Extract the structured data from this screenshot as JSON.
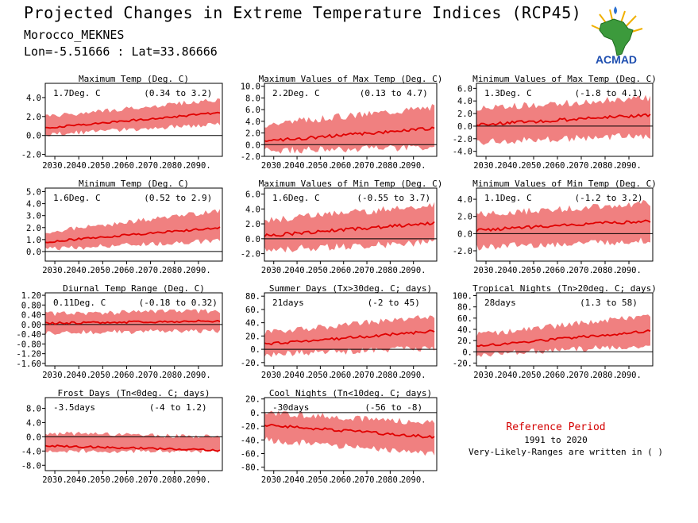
{
  "title": "Projected Changes in Extreme Temperature Indices (RCP45)",
  "station": "Morocco_MEKNES",
  "coords": "Lon=-5.51666 : Lat=33.86666",
  "logo_text": "ACMAD",
  "colors": {
    "band": "#f08080",
    "line": "#e00000",
    "axis": "#000000",
    "ref_title": "#d40000"
  },
  "reference": {
    "title": "Reference Period",
    "years": "1991 to 2020",
    "note": "Very-Likely-Ranges are written in ( )"
  },
  "chart_data": [
    {
      "type": "area",
      "title": "Maximum Temp (Deg. C)",
      "summary": "1.7Deg. C",
      "range": "(0.34 to 3.2)",
      "x_ticks": [
        "2030.",
        "2040.",
        "2050.",
        "2060.",
        "2070.",
        "2080.",
        "2090."
      ],
      "y_ticks": [
        "-2.0",
        "0.0",
        "2.0",
        "4.0"
      ],
      "xlim": [
        2026,
        2100
      ],
      "ylim": [
        -2.2,
        5.5
      ],
      "series": {
        "x_start": 2026,
        "x_end": 2099,
        "mean_start": 0.8,
        "mean_end": 2.4,
        "band_lower": [
          0.1,
          1.2
        ],
        "band_upper": [
          2.0,
          3.8
        ],
        "noise": 0.35
      }
    },
    {
      "type": "area",
      "title": "Maximum Values of Max Temp (Deg. C)",
      "summary": "2.2Deg. C",
      "range": "(0.13 to 4.7)",
      "x_ticks": [
        "2030.",
        "2040.",
        "2050.",
        "2060.",
        "2070.",
        "2080.",
        "2090."
      ],
      "y_ticks": [
        "-2.0",
        "0.0",
        "2.0",
        "4.0",
        "6.0",
        "8.0",
        "10.0"
      ],
      "xlim": [
        2026,
        2100
      ],
      "ylim": [
        -2.0,
        10.5
      ],
      "series": {
        "x_start": 2026,
        "x_end": 2099,
        "mean_start": 0.6,
        "mean_end": 2.8,
        "band_lower": [
          -1.0,
          -0.5
        ],
        "band_upper": [
          3.5,
          6.5
        ],
        "noise": 0.9
      }
    },
    {
      "type": "area",
      "title": "Minimum Values of Max Temp (Deg. C)",
      "summary": "1.3Deg. C",
      "range": "(-1.8 to 4.1)",
      "x_ticks": [
        "2030.",
        "2040.",
        "2050.",
        "2060.",
        "2070.",
        "2080.",
        "2090."
      ],
      "y_ticks": [
        "-4.0",
        "-2.0",
        "0.0",
        "2.0",
        "4.0",
        "6.0"
      ],
      "xlim": [
        2026,
        2100
      ],
      "ylim": [
        -4.8,
        6.8
      ],
      "series": {
        "x_start": 2026,
        "x_end": 2099,
        "mean_start": 0.2,
        "mean_end": 1.8,
        "band_lower": [
          -2.5,
          -1.5
        ],
        "band_upper": [
          2.8,
          4.5
        ],
        "noise": 0.8
      }
    },
    {
      "type": "area",
      "title": "Minimum Temp (Deg. C)",
      "summary": "1.6Deg. C",
      "range": "(0.52 to 2.9)",
      "x_ticks": [
        "2030.",
        "2040.",
        "2050.",
        "2060.",
        "2070.",
        "2080.",
        "2090."
      ],
      "y_ticks": [
        "0.0",
        "1.0",
        "2.0",
        "3.0",
        "4.0",
        "5.0"
      ],
      "xlim": [
        2026,
        2100
      ],
      "ylim": [
        -0.8,
        5.3
      ],
      "series": {
        "x_start": 2026,
        "x_end": 2099,
        "mean_start": 0.8,
        "mean_end": 2.0,
        "band_lower": [
          0.2,
          0.9
        ],
        "band_upper": [
          1.6,
          3.4
        ],
        "noise": 0.3
      }
    },
    {
      "type": "area",
      "title": "Maximum Values of Min Temp (Deg. C)",
      "summary": "1.6Deg. C",
      "range": "(-0.55 to 3.7)",
      "x_ticks": [
        "2030.",
        "2040.",
        "2050.",
        "2060.",
        "2070.",
        "2080.",
        "2090."
      ],
      "y_ticks": [
        "-2.0",
        "0.0",
        "2.0",
        "4.0",
        "6.0"
      ],
      "xlim": [
        2026,
        2100
      ],
      "ylim": [
        -3.0,
        6.8
      ],
      "series": {
        "x_start": 2026,
        "x_end": 2099,
        "mean_start": 0.4,
        "mean_end": 2.1,
        "band_lower": [
          -1.5,
          -0.5
        ],
        "band_upper": [
          2.5,
          4.5
        ],
        "noise": 0.7
      }
    },
    {
      "type": "area",
      "title": "Minimum Values of Min Temp (Deg. C)",
      "summary": "1.1Deg. C",
      "range": "(-1.2 to 3.2)",
      "x_ticks": [
        "2030.",
        "2040.",
        "2050.",
        "2060.",
        "2070.",
        "2080.",
        "2090."
      ],
      "y_ticks": [
        "-2.0",
        "0.0",
        "2.0",
        "4.0"
      ],
      "xlim": [
        2026,
        2100
      ],
      "ylim": [
        -3.2,
        5.3
      ],
      "series": {
        "x_start": 2026,
        "x_end": 2099,
        "mean_start": 0.4,
        "mean_end": 1.5,
        "band_lower": [
          -1.6,
          -0.8
        ],
        "band_upper": [
          2.2,
          3.6
        ],
        "noise": 0.6
      }
    },
    {
      "type": "area",
      "title": "Diurnal Temp Range (Deg. C)",
      "summary": "0.11Deg. C",
      "range": "(-0.18 to 0.32)",
      "x_ticks": [
        "2030.",
        "2040.",
        "2050.",
        "2060.",
        "2070.",
        "2080.",
        "2090."
      ],
      "y_ticks": [
        "-1.60",
        "-1.20",
        "-0.80",
        "-0.40",
        "0.00",
        "0.40",
        "0.80",
        "1.20"
      ],
      "xlim": [
        2026,
        2100
      ],
      "ylim": [
        -1.7,
        1.3
      ],
      "series": {
        "x_start": 2026,
        "x_end": 2099,
        "mean_start": 0.05,
        "mean_end": 0.15,
        "band_lower": [
          -0.35,
          -0.25
        ],
        "band_upper": [
          0.45,
          0.55
        ],
        "noise": 0.15
      }
    },
    {
      "type": "area",
      "title": "Summer Days (Tx>30deg. C; days)",
      "summary": "21days",
      "range": "(-2 to 45)",
      "x_ticks": [
        "2030.",
        "2040.",
        "2050.",
        "2060.",
        "2070.",
        "2080.",
        "2090."
      ],
      "y_ticks": [
        "-20.",
        "0.",
        "20.",
        "40.",
        "60.",
        "80."
      ],
      "xlim": [
        2026,
        2100
      ],
      "ylim": [
        -25,
        85
      ],
      "series": {
        "x_start": 2026,
        "x_end": 2099,
        "mean_start": 8,
        "mean_end": 27,
        "band_lower": [
          -8,
          2
        ],
        "band_upper": [
          25,
          50
        ],
        "noise": 7
      }
    },
    {
      "type": "area",
      "title": "Tropical Nights (Tn>20deg. C; days)",
      "summary": "28days",
      "range": "(1.3 to 58)",
      "x_ticks": [
        "2030.",
        "2040.",
        "2050.",
        "2060.",
        "2070.",
        "2080.",
        "2090."
      ],
      "y_ticks": [
        "-20.",
        "0.",
        "20.",
        "40.",
        "60.",
        "80.",
        "100."
      ],
      "xlim": [
        2026,
        2100
      ],
      "ylim": [
        -25,
        105
      ],
      "series": {
        "x_start": 2026,
        "x_end": 2099,
        "mean_start": 10,
        "mean_end": 37,
        "band_lower": [
          -5,
          12
        ],
        "band_upper": [
          30,
          65
        ],
        "noise": 8
      }
    },
    {
      "type": "area",
      "title": "Frost Days (Tn<0deg. C; days)",
      "summary": "-3.5days",
      "range": "(-4 to 1.2)",
      "x_ticks": [
        "2030.",
        "2040.",
        "2050.",
        "2060.",
        "2070.",
        "2080.",
        "2090."
      ],
      "y_ticks": [
        "-8.0",
        "-4.0",
        "0.0",
        "4.0",
        "8.0"
      ],
      "xlim": [
        2026,
        2100
      ],
      "ylim": [
        -9.5,
        11.0
      ],
      "series": {
        "x_start": 2026,
        "x_end": 2099,
        "mean_start": -2.5,
        "mean_end": -3.8,
        "band_lower": [
          -4.0,
          -4.0
        ],
        "band_upper": [
          1.0,
          0.0
        ],
        "noise": 0.9
      }
    },
    {
      "type": "area",
      "title": "Cool Nights (Tn<10deg. C; days)",
      "summary": "-30days",
      "range": "(-56 to -8)",
      "x_ticks": [
        "2030.",
        "2040.",
        "2050.",
        "2060.",
        "2070.",
        "2080.",
        "2090."
      ],
      "y_ticks": [
        "-80.",
        "-60.",
        "-40.",
        "-20.",
        "0.",
        "20."
      ],
      "xlim": [
        2026,
        2100
      ],
      "ylim": [
        -85,
        22
      ],
      "series": {
        "x_start": 2026,
        "x_end": 2099,
        "mean_start": -18,
        "mean_end": -36,
        "band_lower": [
          -40,
          -60
        ],
        "band_upper": [
          0,
          -15
        ],
        "noise": 7
      }
    }
  ]
}
